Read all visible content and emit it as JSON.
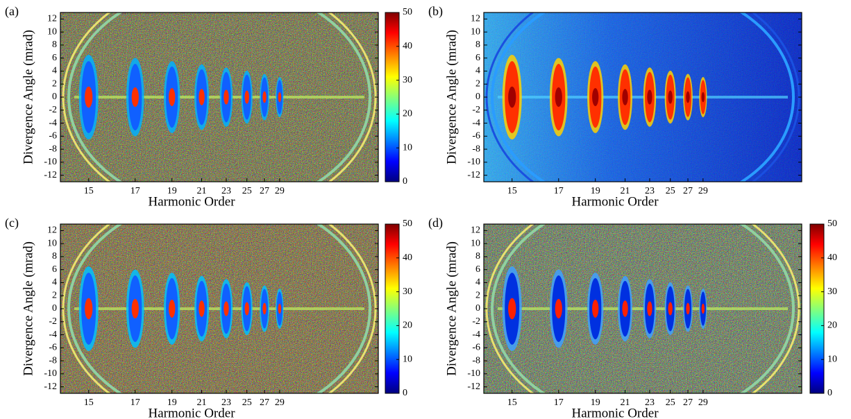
{
  "chart_data": [
    {
      "type": "heatmap",
      "panel_label": "(a)",
      "xlabel": "Harmonic Order",
      "ylabel": "Divergence Angle (mrad)",
      "xscale": "reciprocal",
      "colormap": "jet",
      "xlim": [
        14,
        56
      ],
      "xticks": [
        15,
        17,
        19,
        21,
        23,
        25,
        27,
        29
      ],
      "ylim": [
        -13,
        13
      ],
      "yticks": [
        -12,
        -10,
        -8,
        -6,
        -4,
        -2,
        0,
        2,
        4,
        6,
        8,
        10,
        12
      ],
      "clim": [
        0,
        50
      ],
      "cticks": [
        0,
        10,
        20,
        30,
        40,
        50
      ]
    },
    {
      "type": "heatmap",
      "panel_label": "(b)",
      "xlabel": "Harmonic Order",
      "ylabel": "Divergence Angle (mrad)",
      "xscale": "reciprocal",
      "colormap": "jet",
      "xlim": [
        14,
        56
      ],
      "xticks": [
        15,
        17,
        19,
        21,
        23,
        25,
        27,
        29
      ],
      "ylim": [
        -13,
        13
      ],
      "yticks": [
        -12,
        -10,
        -8,
        -6,
        -4,
        -2,
        0,
        2,
        4,
        6,
        8,
        10,
        12
      ]
    },
    {
      "type": "heatmap",
      "panel_label": "(c)",
      "xlabel": "Harmonic Order",
      "ylabel": "Divergence Angle (mrad)",
      "xscale": "reciprocal",
      "colormap": "jet",
      "xlim": [
        14,
        56
      ],
      "xticks": [
        15,
        17,
        19,
        21,
        23,
        25,
        27,
        29
      ],
      "ylim": [
        -13,
        13
      ],
      "yticks": [
        -12,
        -10,
        -8,
        -6,
        -4,
        -2,
        0,
        2,
        4,
        6,
        8,
        10,
        12
      ],
      "clim": [
        0,
        50
      ],
      "cticks": [
        0,
        10,
        20,
        30,
        40,
        50
      ]
    },
    {
      "type": "heatmap",
      "panel_label": "(d)",
      "xlabel": "Harmonic Order",
      "ylabel": "Divergence Angle (mrad)",
      "xscale": "reciprocal",
      "colormap": "jet",
      "xlim": [
        14,
        56
      ],
      "xticks": [
        15,
        17,
        19,
        21,
        23,
        25,
        27,
        29
      ],
      "ylim": [
        -13,
        13
      ],
      "yticks": [
        -12,
        -10,
        -8,
        -6,
        -4,
        -2,
        0,
        2,
        4,
        6,
        8,
        10,
        12
      ],
      "clim": [
        0,
        50
      ],
      "cticks": [
        0,
        10,
        20,
        30,
        40,
        50
      ]
    }
  ]
}
